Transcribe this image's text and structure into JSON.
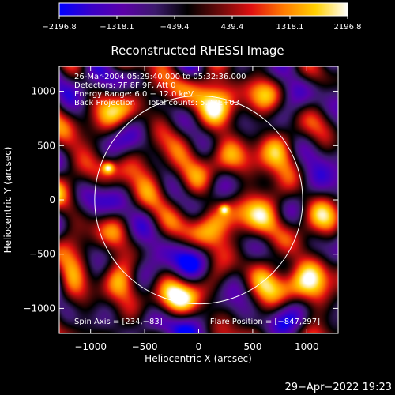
{
  "chart_data": {
    "type": "heatmap",
    "title": "Reconstructed RHESSI Image",
    "xlabel": "Heliocentric X (arcsec)",
    "ylabel": "Heliocentric Y (arcsec)",
    "xlim": [
      -1290,
      1290
    ],
    "ylim": [
      -1230,
      1230
    ],
    "xticks": [
      -1000,
      -500,
      0,
      500,
      1000
    ],
    "yticks": [
      -1000,
      -500,
      0,
      500,
      1000
    ],
    "xtick_labels": [
      "−1000",
      "−500",
      "0",
      "500",
      "1000"
    ],
    "ytick_labels": [
      "−1000",
      "−500",
      "0",
      "500",
      "1000"
    ],
    "colorbar": {
      "min": -2196.8,
      "max": 2196.8,
      "tick_values": [
        -2196.8,
        -1318.1,
        -439.4,
        439.4,
        1318.1,
        2196.8
      ],
      "tick_labels": [
        "−2196.8",
        "−1318.1",
        "−439.4",
        "439.4",
        "1318.1",
        "2196.8"
      ],
      "colors": [
        "#0000ff",
        "#3a00c8",
        "#5b00a8",
        "#3c1a6c",
        "#000000",
        "#6a0a0a",
        "#e01010",
        "#ff7a00",
        "#ffd000",
        "#ffffff"
      ]
    },
    "info_lines": [
      "26-Mar-2004 05:29:40.000 to 05:32:36.000",
      "Detectors: 7F 8F 9F, Att 0",
      "Energy Range: 6.0 − 12.0 keV",
      "Back Projection     Total counts: 5.03E+03"
    ],
    "solar_disk_radius": 962,
    "disk_center": [
      0,
      0
    ],
    "sources": [
      {
        "x": 234,
        "y": -83,
        "level": 1400,
        "sigma": 45
      },
      {
        "x": -840,
        "y": 300,
        "level": 1700,
        "sigma": 55
      }
    ],
    "cross_marker": [
      234,
      -83
    ],
    "spin_axis_label": "Spin Axis = [234,−83]",
    "flare_position_label": "Flare Position = [−847,297]",
    "timestamp": "29−Apr−2022 19:23"
  }
}
